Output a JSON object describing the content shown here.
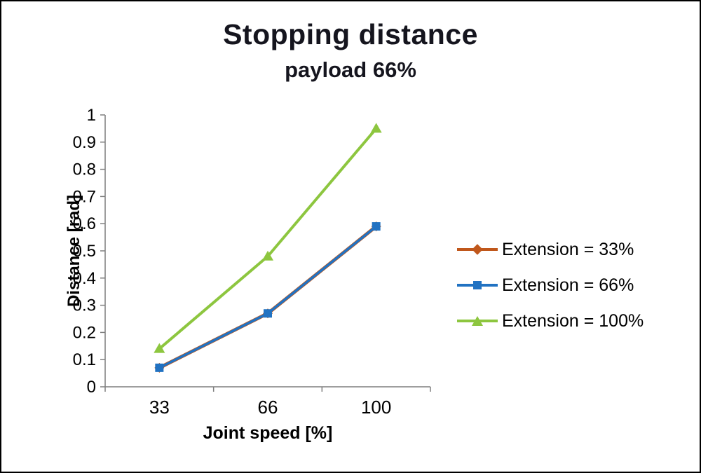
{
  "chart_data": {
    "type": "line",
    "title": "Stopping distance",
    "subtitle": "payload 66%",
    "xlabel": "Joint speed [%]",
    "ylabel": "Distance [rad]",
    "categories": [
      "33",
      "66",
      "100"
    ],
    "ylim": [
      0,
      1
    ],
    "ytick_step": 0.1,
    "grid": false,
    "legend_position": "right",
    "axis_color": "#7f7f7f",
    "series": [
      {
        "name": "Extension = 33%",
        "values": [
          0.07,
          0.27,
          0.59
        ],
        "color": "#c0571b",
        "marker": "diamond",
        "line_width": 5
      },
      {
        "name": "Extension = 66%",
        "values": [
          0.07,
          0.27,
          0.59
        ],
        "color": "#2172c2",
        "marker": "square",
        "line_width": 3.5
      },
      {
        "name": "Extension = 100%",
        "values": [
          0.14,
          0.48,
          0.95
        ],
        "color": "#8dc63f",
        "marker": "triangle",
        "line_width": 4
      }
    ]
  }
}
